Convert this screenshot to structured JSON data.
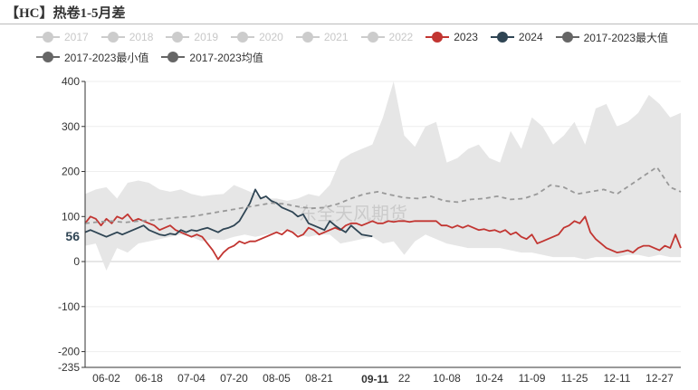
{
  "title": "【HC】热卷1-5月差",
  "watermark": "东全天风期货",
  "colors": {
    "s2023": "#c23531",
    "s2024": "#2f4554",
    "max": "#666666",
    "min": "#666666",
    "avg": "#999999",
    "range_fill": "#e6e6e6",
    "legend_off": "#cccccc"
  },
  "legend": [
    {
      "name": "2017",
      "active": false
    },
    {
      "name": "2018",
      "active": false
    },
    {
      "name": "2019",
      "active": false
    },
    {
      "name": "2020",
      "active": false
    },
    {
      "name": "2021",
      "active": false
    },
    {
      "name": "2022",
      "active": false
    },
    {
      "name": "2023",
      "active": true,
      "color": "#c23531"
    },
    {
      "name": "2024",
      "active": true,
      "color": "#2f4554"
    },
    {
      "name": "2017-2023最大值",
      "active": true,
      "color": "#666666"
    },
    {
      "name": "2017-2023最小值",
      "active": true,
      "color": "#666666"
    },
    {
      "name": "2017-2023均值",
      "active": true,
      "color": "#666666"
    }
  ],
  "chart_data": {
    "type": "line",
    "title": "【HC】热卷1-5月差",
    "ylim": [
      -235,
      400
    ],
    "yticks": [
      "400",
      "300",
      "200",
      "100",
      "0",
      "-100",
      "-200",
      "-235"
    ],
    "x_range": [
      "05-25",
      "01-04"
    ],
    "x_ticks": [
      {
        "label": "06-02",
        "x": "06-02"
      },
      {
        "label": "06-18",
        "x": "06-18"
      },
      {
        "label": "07-04",
        "x": "07-04"
      },
      {
        "label": "07-20",
        "x": "07-20"
      },
      {
        "label": "08-05",
        "x": "08-05"
      },
      {
        "label": "08-21",
        "x": "08-21"
      },
      {
        "label": "09-11",
        "x": "09-11",
        "highlight": true
      },
      {
        "label": "22",
        "x": "09-22"
      },
      {
        "label": "10-08",
        "x": "10-08"
      },
      {
        "label": "10-24",
        "x": "10-24"
      },
      {
        "label": "11-09",
        "x": "11-09"
      },
      {
        "label": "11-25",
        "x": "11-25"
      },
      {
        "label": "12-11",
        "x": "12-11"
      },
      {
        "label": "12-27",
        "x": "12-27"
      }
    ],
    "last_value_label": "56",
    "grid": true,
    "legend_position": "top",
    "band": {
      "name_max": "2017-2023最大值",
      "name_min": "2017-2023最小值",
      "x": [
        "05-25",
        "05-29",
        "06-02",
        "06-06",
        "06-10",
        "06-14",
        "06-18",
        "06-22",
        "06-26",
        "06-30",
        "07-04",
        "07-08",
        "07-12",
        "07-16",
        "07-20",
        "07-24",
        "07-28",
        "08-01",
        "08-05",
        "08-09",
        "08-13",
        "08-17",
        "08-21",
        "08-25",
        "08-29",
        "09-02",
        "09-06",
        "09-10",
        "09-14",
        "09-18",
        "09-22",
        "09-26",
        "09-30",
        "10-04",
        "10-08",
        "10-12",
        "10-16",
        "10-20",
        "10-24",
        "10-28",
        "11-01",
        "11-05",
        "11-09",
        "11-13",
        "11-17",
        "11-21",
        "11-25",
        "11-29",
        "12-03",
        "12-07",
        "12-11",
        "12-15",
        "12-19",
        "12-23",
        "12-27",
        "12-31",
        "01-04"
      ],
      "max": [
        150,
        160,
        165,
        140,
        175,
        180,
        175,
        160,
        155,
        160,
        150,
        145,
        148,
        150,
        170,
        160,
        150,
        140,
        140,
        135,
        140,
        150,
        145,
        170,
        225,
        240,
        250,
        260,
        320,
        400,
        280,
        255,
        300,
        310,
        220,
        230,
        250,
        260,
        230,
        220,
        290,
        250,
        320,
        300,
        260,
        280,
        310,
        260,
        340,
        350,
        300,
        310,
        330,
        370,
        350,
        320,
        330
      ],
      "min": [
        35,
        40,
        -20,
        30,
        20,
        40,
        45,
        50,
        55,
        60,
        55,
        45,
        50,
        48,
        55,
        60,
        55,
        60,
        65,
        70,
        60,
        55,
        60,
        60,
        40,
        45,
        50,
        55,
        40,
        45,
        15,
        45,
        60,
        50,
        40,
        35,
        30,
        30,
        30,
        30,
        25,
        20,
        20,
        15,
        10,
        10,
        10,
        5,
        10,
        10,
        10,
        15,
        15,
        10,
        15,
        10,
        10
      ]
    },
    "series": [
      {
        "name": "2023",
        "x": [
          "05-25",
          "05-27",
          "05-29",
          "05-31",
          "06-02",
          "06-04",
          "06-06",
          "06-08",
          "06-10",
          "06-12",
          "06-14",
          "06-16",
          "06-18",
          "06-20",
          "06-22",
          "06-24",
          "06-26",
          "06-28",
          "06-30",
          "07-02",
          "07-04",
          "07-06",
          "07-08",
          "07-10",
          "07-12",
          "07-14",
          "07-16",
          "07-18",
          "07-20",
          "07-22",
          "07-24",
          "07-26",
          "07-28",
          "07-30",
          "08-01",
          "08-03",
          "08-05",
          "08-07",
          "08-09",
          "08-11",
          "08-13",
          "08-15",
          "08-17",
          "08-19",
          "08-21",
          "08-23",
          "08-25",
          "08-27",
          "08-29",
          "08-31",
          "09-02",
          "09-04",
          "09-06",
          "09-08",
          "09-10",
          "09-12",
          "09-14",
          "09-16",
          "09-18",
          "09-20",
          "09-22",
          "09-24",
          "09-26",
          "09-28",
          "09-30",
          "10-02",
          "10-04",
          "10-06",
          "10-08",
          "10-10",
          "10-12",
          "10-14",
          "10-16",
          "10-18",
          "10-20",
          "10-22",
          "10-24",
          "10-26",
          "10-28",
          "10-30",
          "11-01",
          "11-03",
          "11-05",
          "11-07",
          "11-09",
          "11-11",
          "11-13",
          "11-15",
          "11-17",
          "11-19",
          "11-21",
          "11-23",
          "11-25",
          "11-27",
          "11-29",
          "12-01",
          "12-03",
          "12-05",
          "12-07",
          "12-09",
          "12-11",
          "12-13",
          "12-15",
          "12-17",
          "12-19",
          "12-21",
          "12-23",
          "12-25",
          "12-27",
          "12-29",
          "12-31",
          "01-02",
          "01-04"
        ],
        "values": [
          85,
          100,
          95,
          80,
          95,
          85,
          100,
          95,
          105,
          90,
          95,
          90,
          85,
          80,
          70,
          75,
          80,
          70,
          65,
          60,
          55,
          60,
          55,
          40,
          25,
          5,
          20,
          30,
          35,
          45,
          40,
          45,
          45,
          50,
          55,
          60,
          65,
          60,
          70,
          65,
          55,
          60,
          75,
          70,
          60,
          65,
          70,
          75,
          70,
          80,
          85,
          85,
          80,
          85,
          90,
          85,
          85,
          90,
          88,
          90,
          90,
          88,
          90,
          90,
          90,
          90,
          90,
          80,
          80,
          75,
          80,
          75,
          80,
          75,
          70,
          72,
          68,
          70,
          65,
          70,
          60,
          65,
          55,
          50,
          60,
          40,
          45,
          50,
          55,
          60,
          75,
          80,
          90,
          85,
          100,
          65,
          50,
          40,
          30,
          25,
          20,
          22,
          25,
          20,
          30,
          35,
          35,
          30,
          25,
          35,
          30,
          60,
          30
        ]
      },
      {
        "name": "2024",
        "x": [
          "05-25",
          "05-27",
          "05-29",
          "05-31",
          "06-02",
          "06-04",
          "06-06",
          "06-08",
          "06-10",
          "06-12",
          "06-14",
          "06-16",
          "06-18",
          "06-20",
          "06-22",
          "06-24",
          "06-26",
          "06-28",
          "06-30",
          "07-02",
          "07-04",
          "07-06",
          "07-08",
          "07-10",
          "07-12",
          "07-14",
          "07-16",
          "07-18",
          "07-20",
          "07-22",
          "07-24",
          "07-26",
          "07-28",
          "07-30",
          "08-01",
          "08-03",
          "08-05",
          "08-07",
          "08-09",
          "08-11",
          "08-13",
          "08-15",
          "08-17",
          "08-19",
          "08-21",
          "08-23",
          "08-25",
          "08-27",
          "08-29",
          "08-31",
          "09-02",
          "09-04",
          "09-06",
          "09-08",
          "09-10"
        ],
        "values": [
          65,
          70,
          65,
          60,
          55,
          60,
          65,
          60,
          65,
          70,
          75,
          80,
          70,
          65,
          60,
          58,
          62,
          60,
          70,
          65,
          70,
          68,
          72,
          75,
          70,
          65,
          72,
          75,
          80,
          90,
          110,
          130,
          160,
          140,
          145,
          135,
          130,
          120,
          115,
          110,
          100,
          105,
          85,
          80,
          75,
          70,
          90,
          80,
          72,
          65,
          80,
          70,
          60,
          58,
          56
        ]
      },
      {
        "name": "2017-2023均值",
        "x": [
          "05-25",
          "05-30",
          "06-04",
          "06-09",
          "06-14",
          "06-19",
          "06-24",
          "06-29",
          "07-04",
          "07-09",
          "07-14",
          "07-19",
          "07-24",
          "07-29",
          "08-03",
          "08-08",
          "08-13",
          "08-18",
          "08-23",
          "08-28",
          "09-02",
          "09-07",
          "09-12",
          "09-17",
          "09-22",
          "09-27",
          "10-02",
          "10-07",
          "10-12",
          "10-17",
          "10-22",
          "10-27",
          "11-01",
          "11-06",
          "11-11",
          "11-16",
          "11-21",
          "11-26",
          "12-01",
          "12-06",
          "12-11",
          "12-16",
          "12-21",
          "12-26",
          "12-31",
          "01-04"
        ],
        "values": [
          85,
          88,
          90,
          87,
          90,
          92,
          95,
          98,
          100,
          105,
          110,
          115,
          120,
          125,
          130,
          128,
          122,
          118,
          120,
          128,
          140,
          150,
          155,
          148,
          142,
          140,
          145,
          135,
          132,
          138,
          140,
          145,
          138,
          140,
          150,
          170,
          165,
          150,
          155,
          160,
          150,
          170,
          190,
          210,
          165,
          155
        ]
      }
    ]
  }
}
